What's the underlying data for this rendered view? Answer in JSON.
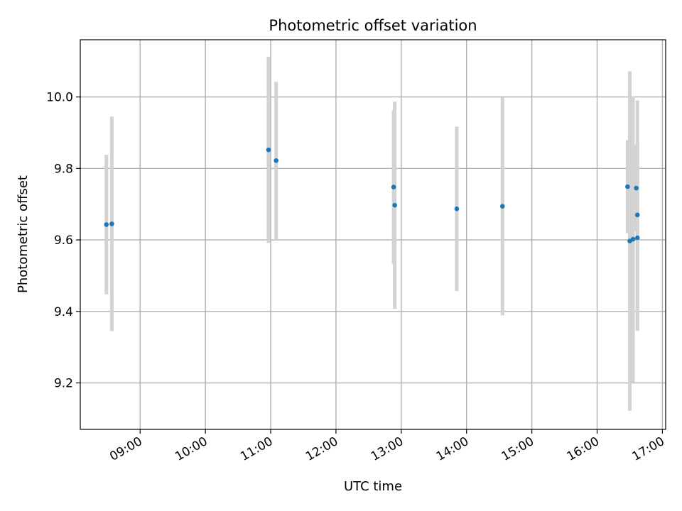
{
  "chart_data": {
    "type": "scatter",
    "title": "Photometric offset variation",
    "xlabel": "UTC time",
    "ylabel": "Photometric offset",
    "x_ticks": [
      "09:00",
      "10:00",
      "11:00",
      "12:00",
      "13:00",
      "14:00",
      "15:00",
      "16:00",
      "17:00"
    ],
    "y_ticks": [
      "9.2",
      "9.4",
      "9.6",
      "9.8",
      "10.0"
    ],
    "xlim": [
      "08:05",
      "17:03"
    ],
    "ylim": [
      9.07,
      10.16
    ],
    "grid": true,
    "colors": {
      "points": "#1f77b4",
      "errorbars": "#d3d3d3",
      "grid": "#b0b0b0"
    },
    "points": [
      {
        "x": "08:29",
        "y": 9.643,
        "yerr": 0.195
      },
      {
        "x": "08:34",
        "y": 9.645,
        "yerr": 0.3
      },
      {
        "x": "10:58",
        "y": 9.852,
        "yerr": 0.26
      },
      {
        "x": "11:05",
        "y": 9.822,
        "yerr": 0.22
      },
      {
        "x": "12:53",
        "y": 9.748,
        "yerr": 0.215
      },
      {
        "x": "12:54",
        "y": 9.697,
        "yerr": 0.29
      },
      {
        "x": "13:51",
        "y": 9.687,
        "yerr": 0.23
      },
      {
        "x": "14:33",
        "y": 9.694,
        "yerr": 0.305
      },
      {
        "x": "16:28",
        "y": 9.749,
        "yerr": 0.13
      },
      {
        "x": "16:30",
        "y": 9.597,
        "yerr": 0.475
      },
      {
        "x": "16:33",
        "y": 9.602,
        "yerr": 0.4
      },
      {
        "x": "16:36",
        "y": 9.745,
        "yerr": 0.12
      },
      {
        "x": "16:37",
        "y": 9.606,
        "yerr": 0.26
      },
      {
        "x": "16:37",
        "y": 9.67,
        "yerr": 0.32
      }
    ]
  }
}
